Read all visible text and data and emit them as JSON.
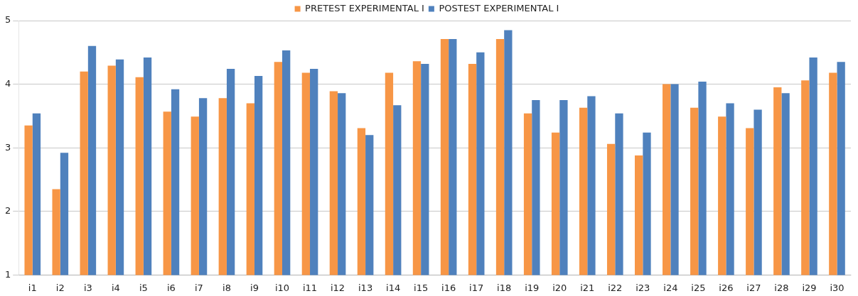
{
  "chart_data": {
    "type": "bar",
    "categories": [
      "i1",
      "i2",
      "i3",
      "i4",
      "i5",
      "i6",
      "i7",
      "i8",
      "i9",
      "i10",
      "i11",
      "i12",
      "i13",
      "i14",
      "i15",
      "i16",
      "i17",
      "i18",
      "i19",
      "i20",
      "i21",
      "i22",
      "i23",
      "i24",
      "i25",
      "i26",
      "i27",
      "i28",
      "i29",
      "i30"
    ],
    "series": [
      {
        "name": "PRETEST EXPERIMENTAL I",
        "color": "#f79646",
        "values": [
          3.35,
          2.35,
          4.2,
          4.29,
          4.11,
          3.57,
          3.49,
          3.78,
          3.7,
          4.35,
          4.18,
          3.89,
          3.31,
          4.18,
          4.36,
          4.71,
          4.32,
          4.71,
          3.54,
          3.24,
          3.63,
          3.06,
          2.88,
          4.0,
          3.63,
          3.49,
          3.31,
          3.95,
          4.06,
          4.18
        ]
      },
      {
        "name": "POSTEST EXPERIMENTAL I",
        "color": "#4f81bd",
        "values": [
          3.54,
          2.92,
          4.6,
          4.39,
          4.42,
          3.92,
          3.78,
          4.24,
          4.13,
          4.53,
          4.24,
          3.86,
          3.2,
          3.67,
          4.32,
          4.71,
          4.5,
          4.85,
          3.75,
          3.75,
          3.81,
          3.54,
          3.24,
          4.0,
          4.04,
          3.7,
          3.6,
          3.86,
          4.42,
          4.35
        ]
      }
    ],
    "ylim": [
      1,
      5
    ],
    "yticks": [
      1,
      2,
      3,
      4,
      5
    ],
    "grid": "y",
    "legend": "top"
  }
}
